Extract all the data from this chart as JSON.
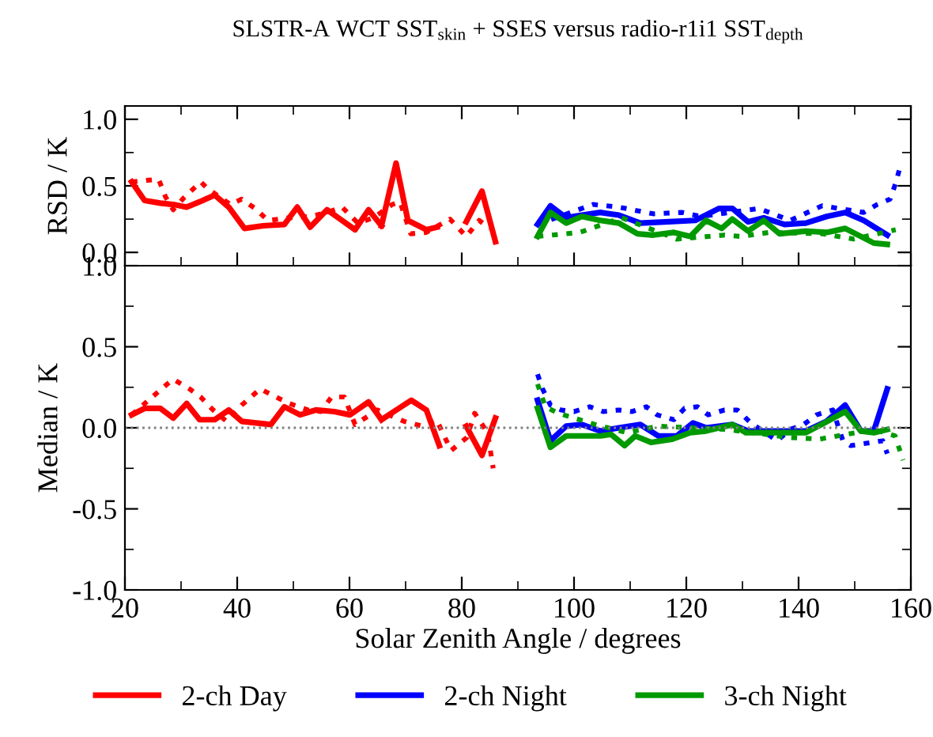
{
  "chart_data": [
    {
      "type": "line",
      "title": "SLSTR-A WCT SST$_{skin}$ + SSES versus radio-r1i1 SST$_{depth}$",
      "ylabel": "RSD / K",
      "xlim": [
        20,
        160
      ],
      "xticks": [
        20,
        40,
        60,
        80,
        100,
        120,
        140,
        160
      ],
      "ylim": [
        -0.1,
        1.1
      ],
      "yticks": [
        {
          "value": 0,
          "label": "0.0"
        },
        {
          "value": 0.5,
          "label": "0.5"
        },
        {
          "value": 1,
          "label": "1.0"
        }
      ],
      "tick_labels": "y",
      "legend": "bottom",
      "series": [
        {
          "name": "2-ch Day",
          "color": "#ff0000",
          "line_style": "solid",
          "x": [
            21.2,
            23.5,
            26.3,
            28.6,
            31,
            33.3,
            36,
            38.5,
            41.3,
            44.6,
            48.4,
            50.7,
            53,
            56,
            58,
            61,
            63.4,
            65.7
          ],
          "values": [
            0.53,
            0.39,
            0.37,
            0.36,
            0.34,
            0.38,
            0.43,
            0.34,
            0.18,
            0.2,
            0.21,
            0.34,
            0.19,
            0.32,
            0.26,
            0.17,
            0.32,
            0.2
          ]
        },
        {
          "color": "#ff0000",
          "line_style": "solid",
          "x": [
            65.7,
            68.3,
            70.4,
            73.7,
            75.6,
            null,
            80.8,
            83.6,
            86
          ],
          "values": [
            0.2,
            0.67,
            0.24,
            0.17,
            0.19,
            null,
            0.23,
            0.46,
            0.08
          ]
        },
        {
          "color": "#ff0000",
          "line_style": "dotted",
          "x": [
            21.2,
            26,
            27.2,
            28.6,
            30.5,
            33.5,
            34.7,
            38.8,
            40.8,
            43.2,
            45.5,
            49.3,
            53,
            56,
            58.7,
            61.5,
            64.3,
            67.6,
            69,
            70.9,
            73.7,
            77.9,
            80.8,
            83.1,
            85
          ],
          "values": [
            0.53,
            0.55,
            0.42,
            0.32,
            0.41,
            0.53,
            0.48,
            0.36,
            0.4,
            0.33,
            0.24,
            0.26,
            0.27,
            0.3,
            0.34,
            0.22,
            0.26,
            0.36,
            0.38,
            0.14,
            0.15,
            0.25,
            0.12,
            0.24,
            0.18
          ]
        },
        {
          "name": "2-ch Night",
          "color": "#0000ff",
          "line_style": "solid",
          "x": [
            93.5,
            95.8,
            98.6,
            101.4,
            104.7,
            108,
            111.8,
            116.9,
            121.6,
            125.8,
            128.2,
            131,
            133.8,
            137.5,
            141.3,
            145,
            148.3,
            151.6,
            155.8
          ],
          "values": [
            0.21,
            0.35,
            0.26,
            0.28,
            0.3,
            0.28,
            0.22,
            0.23,
            0.24,
            0.33,
            0.33,
            0.23,
            0.26,
            0.21,
            0.22,
            0.27,
            0.3,
            0.24,
            0.13
          ]
        },
        {
          "color": "#0000ff",
          "line_style": "dotted",
          "x": [
            93.5,
            103.4,
            108,
            114.1,
            119.3,
            122.5,
            132.9,
            138.5,
            144.2,
            151.6,
            154,
            156.3,
            157.3,
            158
          ],
          "values": [
            0.21,
            0.36,
            0.34,
            0.29,
            0.3,
            0.27,
            0.33,
            0.24,
            0.35,
            0.3,
            0.36,
            0.4,
            0.52,
            0.63
          ]
        },
        {
          "name": "3-ch Night",
          "color": "#009900",
          "line_style": "solid",
          "x": [
            93.5,
            95.8,
            98.6,
            101.4,
            104.7,
            108,
            111.3,
            114.1,
            117.8,
            120.7,
            123.5,
            126.3,
            128.2,
            131,
            133.8,
            136.6,
            141.3,
            145,
            148.3,
            153.4,
            155.8
          ],
          "values": [
            0.12,
            0.3,
            0.22,
            0.27,
            0.24,
            0.22,
            0.14,
            0.13,
            0.15,
            0.12,
            0.24,
            0.18,
            0.25,
            0.16,
            0.24,
            0.14,
            0.16,
            0.15,
            0.18,
            0.07,
            0.06
          ]
        },
        {
          "color": "#009900",
          "line_style": "dotted",
          "x": [
            93.5,
            98.6,
            101,
            108.5,
            118.3,
            126.8,
            129.6,
            134.8,
            144.2,
            149.8,
            157.3
          ],
          "values": [
            0.12,
            0.14,
            0.15,
            0.26,
            0.1,
            0.13,
            0.12,
            0.15,
            0.14,
            0.1,
            0.17
          ]
        }
      ]
    },
    {
      "type": "line",
      "xlabel": "Solar Zenith Angle / degrees",
      "ylabel": "Median / K",
      "xlim": [
        20,
        160
      ],
      "xticks": [
        20,
        40,
        60,
        80,
        100,
        120,
        140,
        160
      ],
      "ylim": [
        -1.0,
        1.0
      ],
      "yticks": [
        {
          "value": -1,
          "label": "-1.0"
        },
        {
          "value": -0.5,
          "label": "-0.5"
        },
        {
          "value": 0,
          "label": "0.0"
        },
        {
          "value": 0.5,
          "label": "0.5"
        },
        {
          "value": 1,
          "label": "1.0"
        }
      ],
      "ref_lines": [
        {
          "axis": "y",
          "value": 0,
          "color": "#808080",
          "line_style": "dotted"
        }
      ],
      "series": [
        {
          "name": "2-ch Day",
          "color": "#ff0000",
          "line_style": "solid",
          "x": [
            21.2,
            23.5,
            26.3,
            28.6,
            31,
            33.3,
            36,
            38.5,
            40.8,
            46,
            48.4,
            51.2,
            54,
            57.3,
            60.1,
            63.4,
            65.7
          ],
          "values": [
            0.08,
            0.12,
            0.12,
            0.06,
            0.15,
            0.05,
            0.05,
            0.11,
            0.04,
            0.02,
            0.13,
            0.08,
            0.11,
            0.1,
            0.08,
            0.16,
            0.05
          ]
        },
        {
          "color": "#ff0000",
          "line_style": "solid",
          "x": [
            65.7,
            71,
            73.7,
            76,
            null,
            80.8,
            83.6,
            86
          ],
          "values": [
            0.05,
            0.17,
            0.11,
            -0.11,
            null,
            0.01,
            -0.17,
            0.06
          ]
        },
        {
          "color": "#ff0000",
          "line_style": "dotted",
          "x": [
            21.2,
            27.2,
            28.6,
            31.5,
            33.5,
            35.7,
            38.1,
            40.8,
            44.1,
            46.9,
            49.3,
            52.6,
            54.9,
            56.8,
            59.1,
            61,
            65,
            69.7,
            73,
            75.5,
            78.1,
            80.9,
            82.3,
            84.6,
            85.6
          ],
          "values": [
            0.08,
            0.26,
            0.3,
            0.24,
            0.19,
            0.11,
            0.04,
            0.14,
            0.24,
            0.19,
            0.15,
            0.11,
            0.1,
            0.19,
            0.19,
            0.02,
            0.11,
            0.04,
            0.01,
            0.05,
            -0.14,
            -0.06,
            0.09,
            -0.03,
            -0.25
          ]
        },
        {
          "name": "2-ch Night",
          "color": "#0000ff",
          "line_style": "solid",
          "x": [
            93.5,
            95.8,
            98.6,
            101.4,
            104.7,
            108,
            111.8,
            115,
            118.3,
            121.2,
            123.5,
            128.2,
            131,
            134.8,
            141.3,
            145,
            148.3,
            151.1,
            153.4,
            155.8
          ],
          "values": [
            0.17,
            -0.08,
            0.01,
            0.02,
            -0.02,
            0.0,
            0.02,
            -0.05,
            -0.05,
            0.03,
            0.0,
            0.02,
            -0.02,
            -0.02,
            -0.02,
            0.04,
            0.14,
            -0.02,
            -0.02,
            0.24
          ]
        },
        {
          "color": "#0000ff",
          "line_style": "dotted",
          "x": [
            93.5,
            94.4,
            95.8,
            97.7,
            100,
            102.8,
            105.2,
            108,
            110.3,
            112.9,
            114.8,
            117.8,
            119.7,
            122,
            123.9,
            126.8,
            129.1,
            131.5,
            136.2,
            138.5,
            140.9,
            143.2,
            146.1,
            147.9,
            149.3,
            155,
            155.8
          ],
          "values": [
            0.33,
            0.24,
            0.14,
            0.11,
            0.1,
            0.13,
            0.1,
            0.11,
            0.1,
            0.13,
            0.08,
            0.05,
            0.12,
            0.13,
            0.08,
            0.11,
            0.11,
            0.03,
            -0.08,
            -0.01,
            0.02,
            0.08,
            0.11,
            -0.08,
            -0.11,
            -0.08,
            -0.16
          ]
        },
        {
          "name": "3-ch Night",
          "color": "#009900",
          "line_style": "solid",
          "x": [
            93.5,
            95.8,
            98.6,
            101.4,
            104.7,
            106.6,
            109,
            110.9,
            113.7,
            117.5,
            120.7,
            123.5,
            128.2,
            130.6,
            134.8,
            141.3,
            144.6,
            148.3,
            151.1,
            153.4,
            155.8
          ],
          "values": [
            0.12,
            -0.12,
            -0.05,
            -0.05,
            -0.05,
            -0.04,
            -0.11,
            -0.05,
            -0.09,
            -0.07,
            -0.03,
            -0.02,
            0.02,
            -0.03,
            -0.03,
            -0.03,
            0.03,
            0.1,
            -0.02,
            -0.03,
            -0.01
          ]
        },
        {
          "color": "#009900",
          "line_style": "dotted",
          "x": [
            93.5,
            94.9,
            97.2,
            103.8,
            109.4,
            115,
            127.2,
            138.5,
            143.7,
            153.4,
            157.2,
            158.6
          ],
          "values": [
            0.27,
            0.13,
            0.09,
            0.02,
            -0.03,
            0.01,
            -0.01,
            -0.06,
            -0.07,
            -0.01,
            -0.05,
            -0.2
          ]
        }
      ]
    }
  ]
}
